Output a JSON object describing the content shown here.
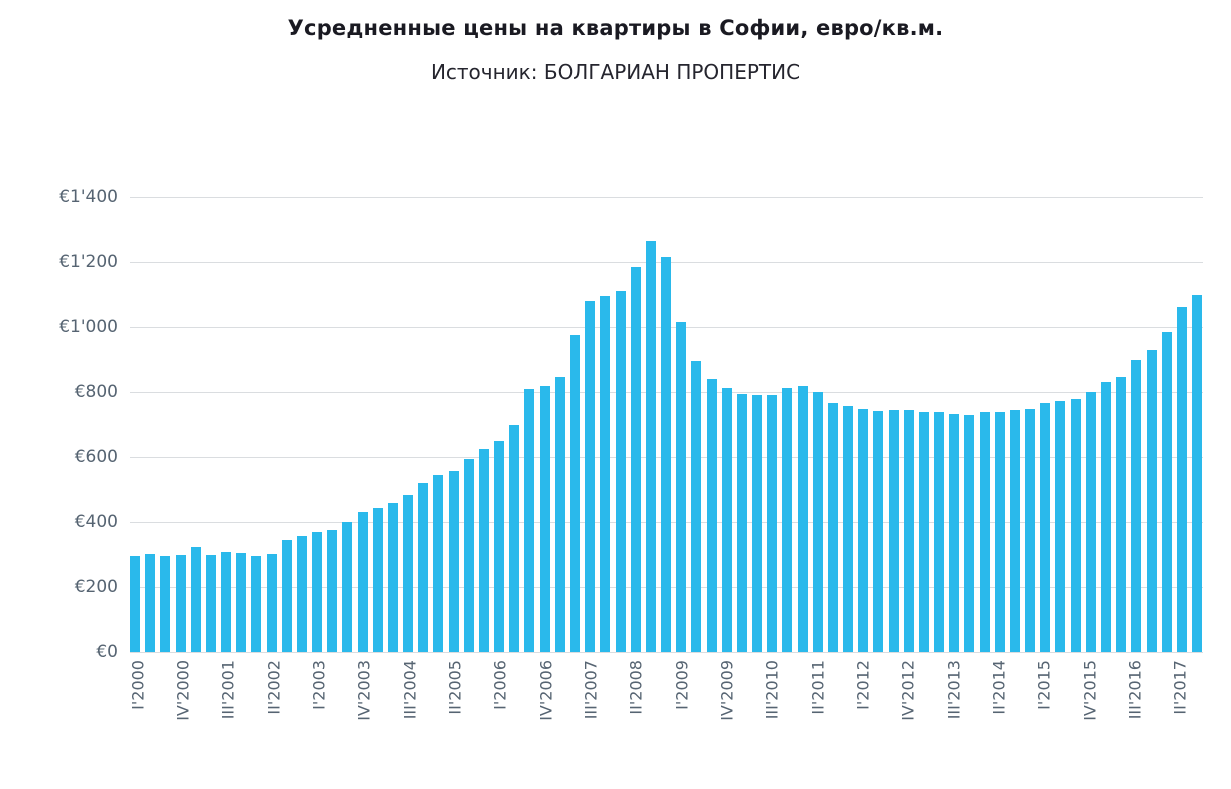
{
  "page": {
    "background_color": "#ffffff"
  },
  "chart_data": {
    "type": "bar",
    "title": "Усредненные цены на квартиры в Софии, евро/кв.м.",
    "subtitle": "Источник: БОЛГАРИАН ПРОПЕРТИС",
    "bar_color": "#2ab9eb",
    "grid_color": "#dadde0",
    "axis_label_color": "#566472",
    "grid": "on",
    "legend": "none",
    "ylabel": "",
    "xlabel": "",
    "ylim": [
      0,
      1400
    ],
    "y_ticks": [
      {
        "value": 0,
        "label": "€0"
      },
      {
        "value": 200,
        "label": "€200"
      },
      {
        "value": 400,
        "label": "€400"
      },
      {
        "value": 600,
        "label": "€600"
      },
      {
        "value": 800,
        "label": "€800"
      },
      {
        "value": 1000,
        "label": "€1'000"
      },
      {
        "value": 1200,
        "label": "€1'200"
      },
      {
        "value": 1400,
        "label": "€1'400"
      }
    ],
    "x_label_every": 3,
    "categories": [
      "I'2000",
      "II'2000",
      "III'2000",
      "IV'2000",
      "I'2001",
      "II'2001",
      "III'2001",
      "IV'2001",
      "I'2002",
      "II'2002",
      "III'2002",
      "IV'2002",
      "I'2003",
      "II'2003",
      "III'2003",
      "IV'2003",
      "I'2004",
      "II'2004",
      "III'2004",
      "IV'2004",
      "I'2005",
      "II'2005",
      "III'2005",
      "IV'2005",
      "I'2006",
      "II'2006",
      "III'2006",
      "IV'2006",
      "I'2007",
      "II'2007",
      "III'2007",
      "IV'2007",
      "I'2008",
      "II'2008",
      "III'2008",
      "IV'2008",
      "I'2009",
      "II'2009",
      "III'2009",
      "IV'2009",
      "I'2010",
      "II'2010",
      "III'2010",
      "IV'2010",
      "I'2011",
      "II'2011",
      "III'2011",
      "IV'2011",
      "I'2012",
      "II'2012",
      "III'2012",
      "IV'2012",
      "I'2013",
      "II'2013",
      "III'2013",
      "IV'2013",
      "I'2014",
      "II'2014",
      "III'2014",
      "IV'2014",
      "I'2015",
      "II'2015",
      "III'2015",
      "IV'2015",
      "I'2016",
      "II'2016",
      "III'2016",
      "IV'2016",
      "I'2017",
      "II'2017",
      "III'2017"
    ],
    "values": [
      295,
      301,
      296,
      300,
      324,
      299,
      309,
      304,
      296,
      301,
      344,
      358,
      370,
      375,
      400,
      432,
      444,
      459,
      484,
      520,
      545,
      556,
      595,
      625,
      650,
      700,
      810,
      820,
      845,
      975,
      1080,
      1095,
      1110,
      1185,
      1265,
      1215,
      1015,
      895,
      840,
      812,
      795,
      790,
      792,
      812,
      818,
      800,
      765,
      757,
      748,
      742,
      744,
      746,
      740,
      737,
      733,
      728,
      737,
      740,
      745,
      747,
      765,
      772,
      780,
      800,
      830,
      845,
      900,
      930,
      985,
      1062,
      1098
    ]
  }
}
